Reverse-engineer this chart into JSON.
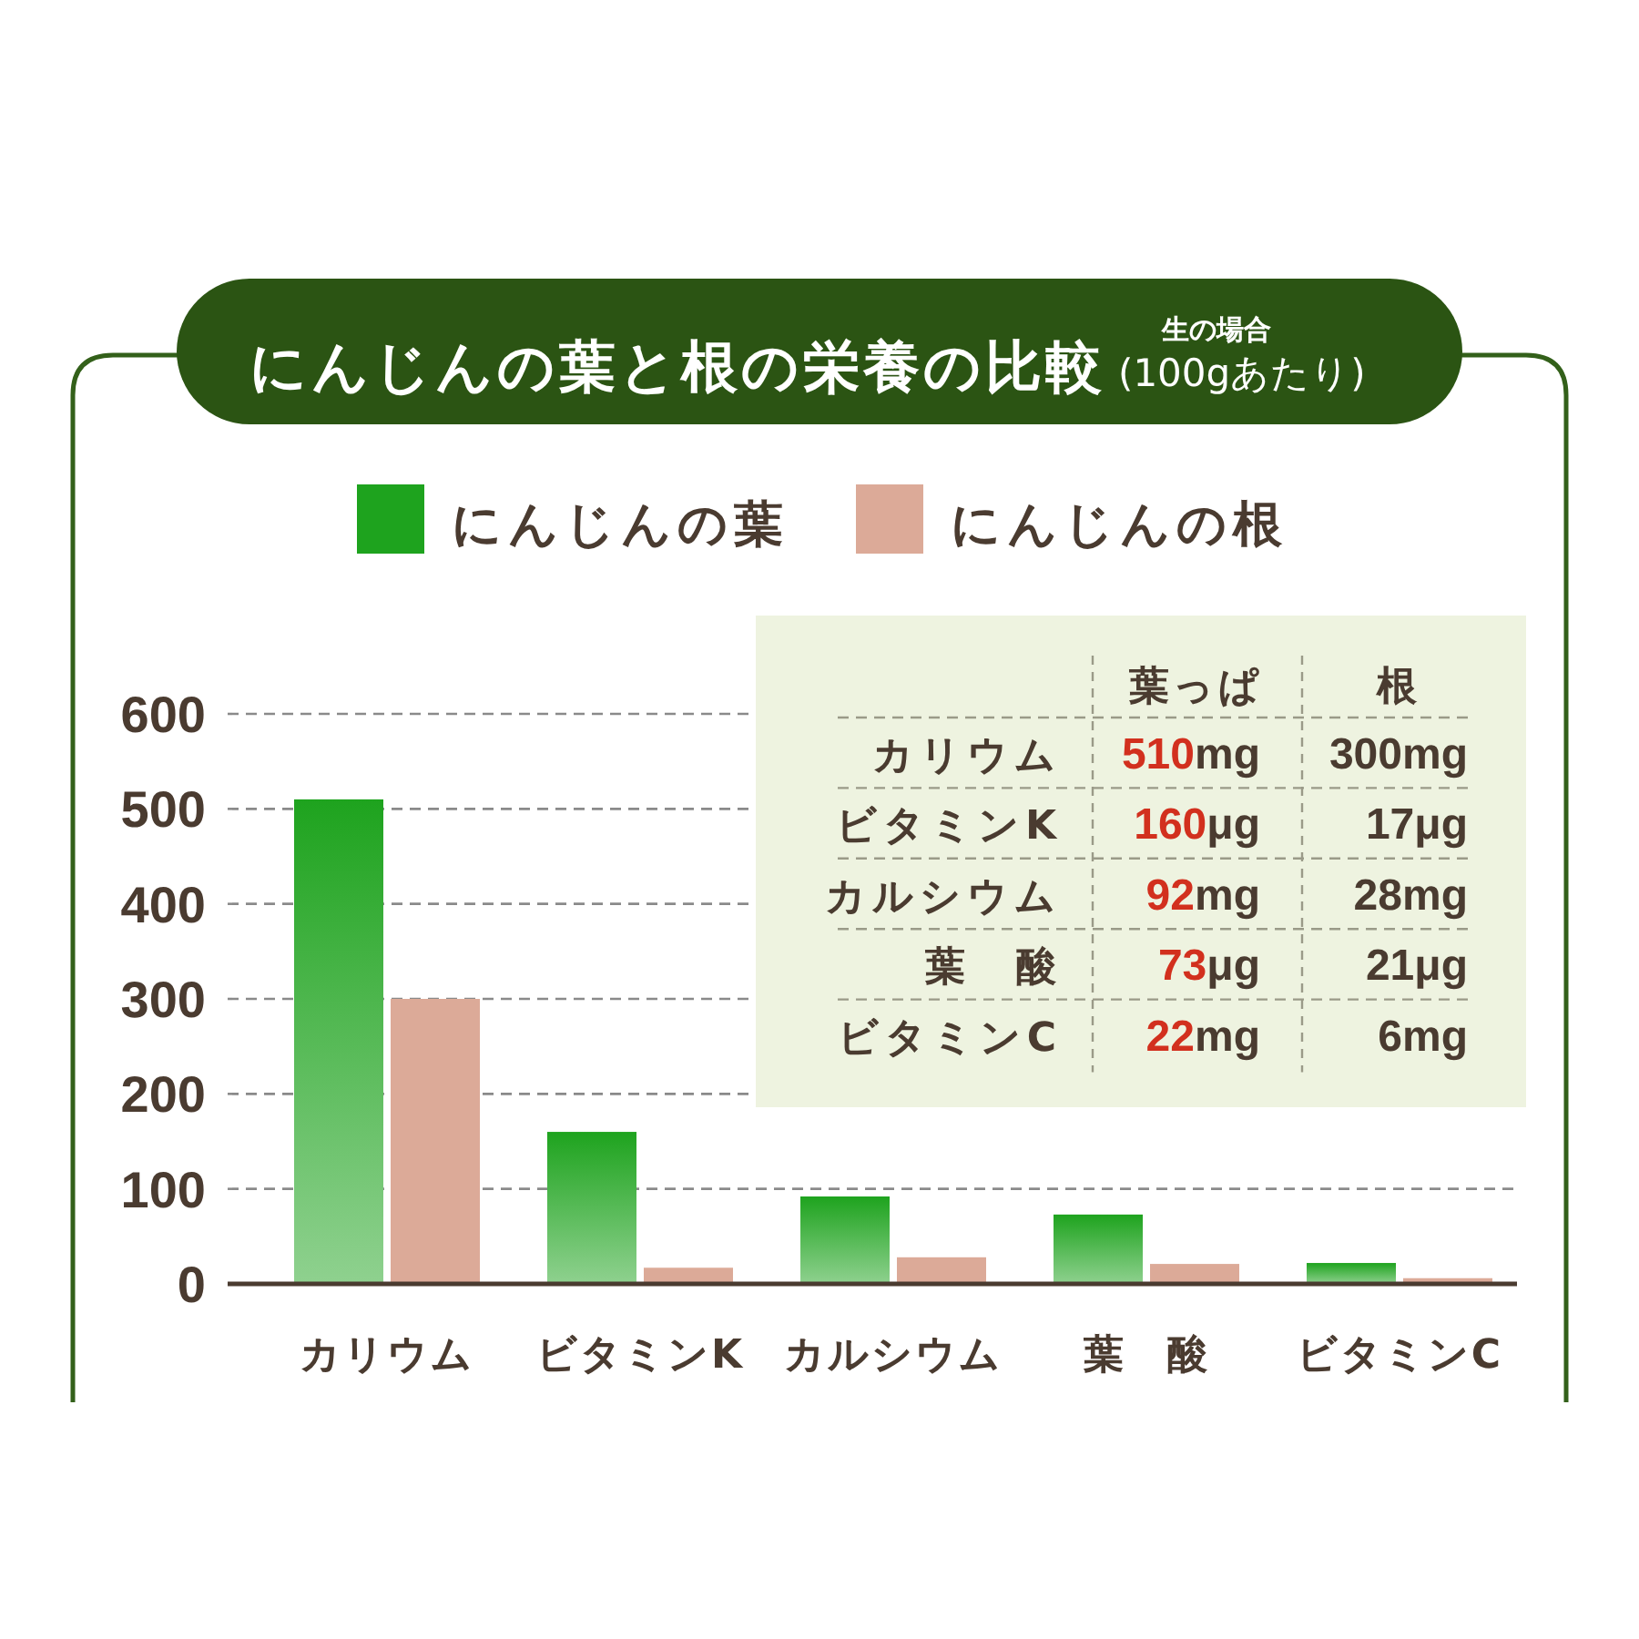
{
  "chart_data": {
    "type": "bar",
    "title": "にんじんの葉と根の栄養の比較",
    "subtitle": "生の場合",
    "annotations": [
      "(100gあたり)",
      "葉っぱ",
      "根",
      "510mg",
      "300mg",
      "160μg",
      "17μg",
      "92mg",
      "28mg",
      "73μg",
      "21μg",
      "22mg",
      "6mg"
    ],
    "categories": [
      "カリウム",
      "ビタミンK",
      "カルシウム",
      "葉　酸",
      "ビタミンC"
    ],
    "series": [
      {
        "name": "にんじんの葉",
        "color": "#1ea31e",
        "values": [
          510,
          160,
          92,
          73,
          22
        ]
      },
      {
        "name": "にんじんの根",
        "color": "#dcaa98",
        "values": [
          300,
          17,
          28,
          21,
          6
        ]
      }
    ],
    "ylim": [
      0,
      600
    ],
    "yticks": [
      0,
      100,
      200,
      300,
      400,
      500,
      600
    ],
    "grid": "y",
    "legend": "top"
  }
}
